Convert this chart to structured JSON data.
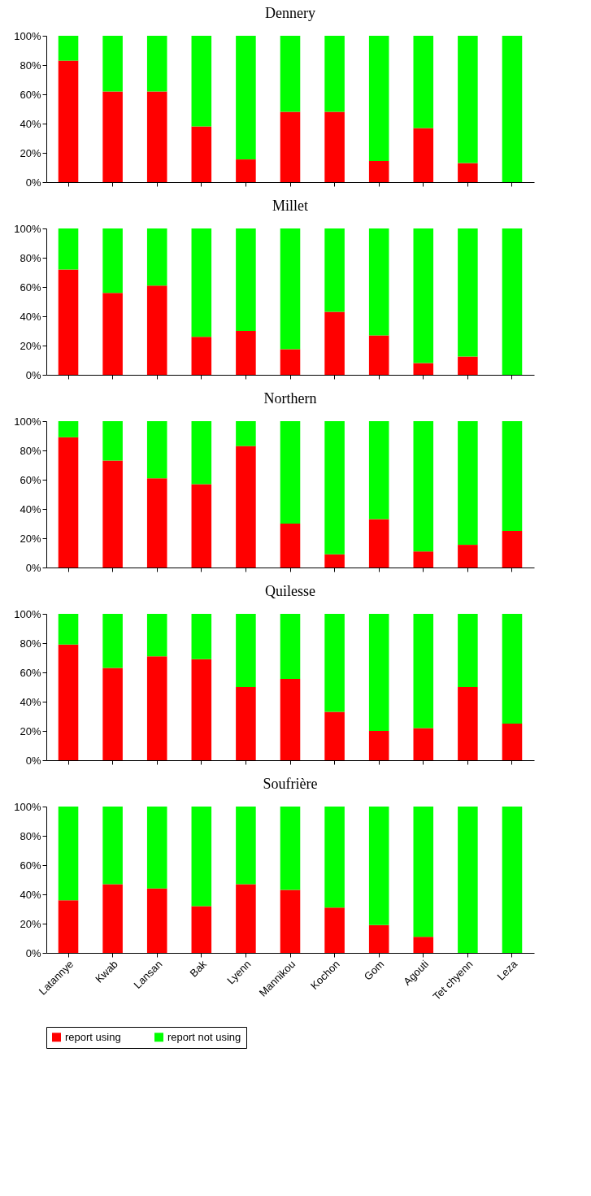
{
  "chart_data": [
    {
      "type": "bar",
      "title": "Dennery",
      "stacked": true,
      "tick_labels": "y",
      "categories": [
        "Latannye",
        "Kwab",
        "Lansan",
        "Bak",
        "Lyenn",
        "Mannikou",
        "Kochon",
        "Gom",
        "Agouti",
        "Tet chyenn",
        "Leza"
      ],
      "ylim": [
        0,
        100
      ],
      "yticks": [
        {
          "value": 0,
          "label": "0%"
        },
        {
          "value": 20,
          "label": "20%"
        },
        {
          "value": 40,
          "label": "40%"
        },
        {
          "value": 60,
          "label": "60%"
        },
        {
          "value": 80,
          "label": "80%"
        },
        {
          "value": 100,
          "label": "100%"
        }
      ],
      "series": [
        {
          "color": "#ff0000",
          "values": [
            83,
            62,
            62,
            38,
            15.5,
            48,
            48,
            14.5,
            37,
            13,
            0
          ]
        },
        {
          "color": "#00ff00",
          "values": [
            17,
            38,
            38,
            62,
            84.5,
            52,
            52,
            85.5,
            63,
            87,
            100
          ]
        }
      ]
    },
    {
      "type": "bar",
      "title": "Millet",
      "stacked": true,
      "tick_labels": "y",
      "categories": [
        "Latannye",
        "Kwab",
        "Lansan",
        "Bak",
        "Lyenn",
        "Mannikou",
        "Kochon",
        "Gom",
        "Agouti",
        "Tet chyenn",
        "Leza"
      ],
      "ylim": [
        0,
        100
      ],
      "yticks": [
        {
          "value": 0,
          "label": "0%"
        },
        {
          "value": 20,
          "label": "20%"
        },
        {
          "value": 40,
          "label": "40%"
        },
        {
          "value": 60,
          "label": "60%"
        },
        {
          "value": 80,
          "label": "80%"
        },
        {
          "value": 100,
          "label": "100%"
        }
      ],
      "series": [
        {
          "color": "#ff0000",
          "values": [
            72,
            56,
            61,
            26,
            30,
            17.5,
            43,
            27,
            8,
            12.5,
            0
          ]
        },
        {
          "color": "#00ff00",
          "values": [
            28,
            44,
            39,
            74,
            70,
            82.5,
            57,
            73,
            92,
            87.5,
            100
          ]
        }
      ]
    },
    {
      "type": "bar",
      "title": "Northern",
      "stacked": true,
      "tick_labels": "y",
      "categories": [
        "Latannye",
        "Kwab",
        "Lansan",
        "Bak",
        "Lyenn",
        "Mannikou",
        "Kochon",
        "Gom",
        "Agouti",
        "Tet chyenn",
        "Leza"
      ],
      "ylim": [
        0,
        100
      ],
      "yticks": [
        {
          "value": 0,
          "label": "0%"
        },
        {
          "value": 20,
          "label": "20%"
        },
        {
          "value": 40,
          "label": "40%"
        },
        {
          "value": 60,
          "label": "60%"
        },
        {
          "value": 80,
          "label": "80%"
        },
        {
          "value": 100,
          "label": "100%"
        }
      ],
      "series": [
        {
          "color": "#ff0000",
          "values": [
            89,
            73,
            61,
            57,
            83,
            30,
            9,
            33,
            11,
            15.5,
            25
          ]
        },
        {
          "color": "#00ff00",
          "values": [
            11,
            27,
            39,
            43,
            17,
            70,
            91,
            67,
            89,
            84.5,
            75
          ]
        }
      ]
    },
    {
      "type": "bar",
      "title": "Quilesse",
      "stacked": true,
      "tick_labels": "y",
      "categories": [
        "Latannye",
        "Kwab",
        "Lansan",
        "Bak",
        "Lyenn",
        "Mannikou",
        "Kochon",
        "Gom",
        "Agouti",
        "Tet chyenn",
        "Leza"
      ],
      "ylim": [
        0,
        100
      ],
      "yticks": [
        {
          "value": 0,
          "label": "0%"
        },
        {
          "value": 20,
          "label": "20%"
        },
        {
          "value": 40,
          "label": "40%"
        },
        {
          "value": 60,
          "label": "60%"
        },
        {
          "value": 80,
          "label": "80%"
        },
        {
          "value": 100,
          "label": "100%"
        }
      ],
      "series": [
        {
          "color": "#ff0000",
          "values": [
            79,
            63,
            71,
            69,
            50,
            55.5,
            33,
            20,
            22,
            50,
            25
          ]
        },
        {
          "color": "#00ff00",
          "values": [
            21,
            37,
            29,
            31,
            50,
            44.5,
            67,
            80,
            78,
            50,
            75
          ]
        }
      ]
    },
    {
      "type": "bar",
      "title": "Soufrière",
      "stacked": true,
      "legend": "bottom",
      "categories": [
        "Latannye",
        "Kwab",
        "Lansan",
        "Bak",
        "Lyenn",
        "Mannikou",
        "Kochon",
        "Gom",
        "Agouti",
        "Tet chyenn",
        "Leza"
      ],
      "ylim": [
        0,
        100
      ],
      "yticks": [
        {
          "value": 0,
          "label": "0%"
        },
        {
          "value": 20,
          "label": "20%"
        },
        {
          "value": 40,
          "label": "40%"
        },
        {
          "value": 60,
          "label": "60%"
        },
        {
          "value": 80,
          "label": "80%"
        },
        {
          "value": 100,
          "label": "100%"
        }
      ],
      "series": [
        {
          "name": "report using",
          "color": "#ff0000",
          "values": [
            36,
            47,
            44,
            32,
            47,
            43,
            31,
            19,
            11,
            0,
            0
          ]
        },
        {
          "name": "report not using",
          "color": "#00ff00",
          "values": [
            64,
            53,
            56,
            68,
            53,
            57,
            69,
            81,
            89,
            100,
            100
          ]
        }
      ]
    }
  ]
}
